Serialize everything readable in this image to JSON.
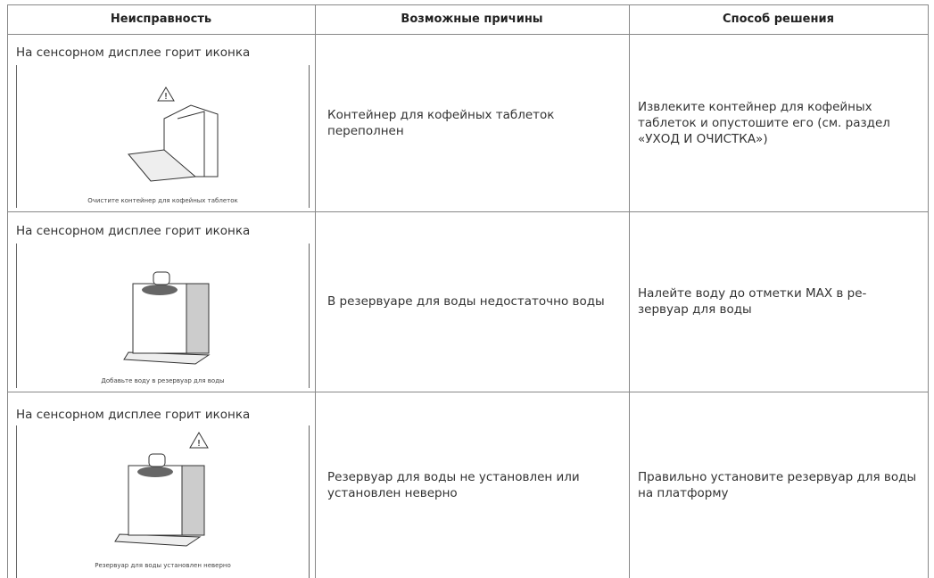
{
  "header": {
    "columns": [
      "Неисправность",
      "Возможные причины",
      "Способ решения"
    ]
  },
  "rows": [
    {
      "issue": "На сенсорном дисплее горит иконка",
      "display_caption": "Очистите контейнер для кофейных таблеток",
      "cause": "Контейнер для кофейных таблеток переполнен",
      "solution": "Извлеките контейнер для кофейных таблеток и опустошите его (см. раздел «УХОД И ОЧИСТКА»)"
    },
    {
      "issue": "На сенсорном дисплее горит иконка",
      "display_caption": "Добавьте воду в резервуар для воды",
      "cause": "В резервуаре для воды недостаточно воды",
      "solution": "Налейте воду до отметки MAX в ре-зервуар для воды"
    },
    {
      "issue": "На сенсорном дисплее горит иконка",
      "display_caption": "Резервуар для воды установлен неверно",
      "cause": "Резервуар для воды не установлен или установлен неверно",
      "solution": "Правильно установите резервуар для воды на платформу"
    }
  ]
}
